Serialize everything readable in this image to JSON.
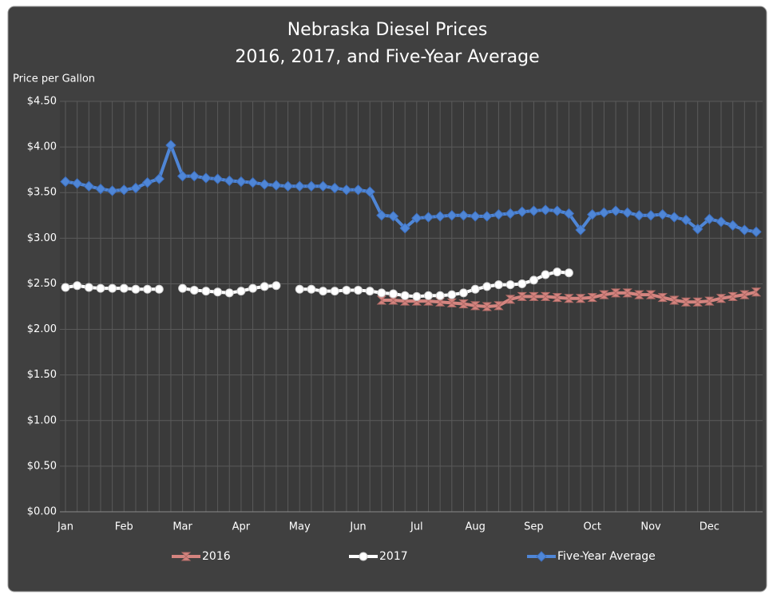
{
  "chart_data": {
    "type": "line",
    "title": "Nebraska Diesel Prices",
    "subtitle": "2016, 2017, and Five-Year Average",
    "y_label": "Price per Gallon",
    "categories": [
      "Jan",
      null,
      null,
      null,
      null,
      "Feb",
      null,
      null,
      null,
      null,
      "Mar",
      null,
      null,
      null,
      null,
      "Apr",
      null,
      null,
      null,
      null,
      "May",
      null,
      null,
      null,
      null,
      "Jun",
      null,
      null,
      null,
      null,
      "Jul",
      null,
      null,
      null,
      null,
      "Aug",
      null,
      null,
      null,
      null,
      "Sep",
      null,
      null,
      null,
      null,
      "Oct",
      null,
      null,
      null,
      null,
      "Nov",
      null,
      null,
      null,
      null,
      "Dec",
      null,
      null,
      null,
      null
    ],
    "series": [
      {
        "name": "2016",
        "color": "#d4847f",
        "marker": "bowtie",
        "values": [
          null,
          null,
          null,
          null,
          null,
          null,
          null,
          null,
          null,
          null,
          null,
          null,
          null,
          null,
          null,
          null,
          null,
          null,
          null,
          null,
          null,
          null,
          null,
          null,
          null,
          null,
          null,
          2.32,
          2.32,
          2.31,
          2.31,
          2.31,
          2.3,
          2.29,
          2.28,
          2.26,
          2.25,
          2.26,
          2.33,
          2.36,
          2.36,
          2.36,
          2.35,
          2.34,
          2.34,
          2.35,
          2.38,
          2.4,
          2.4,
          2.38,
          2.38,
          2.35,
          2.32,
          2.3,
          2.3,
          2.31,
          2.34,
          2.36,
          2.38,
          2.41
        ]
      },
      {
        "name": "2017",
        "color": "#ffffff",
        "marker": "circle",
        "values": [
          2.46,
          2.48,
          2.46,
          2.45,
          2.45,
          2.45,
          2.44,
          2.44,
          2.44,
          null,
          2.45,
          2.43,
          2.42,
          2.41,
          2.4,
          2.42,
          2.45,
          2.47,
          2.48,
          null,
          2.44,
          2.44,
          2.42,
          2.42,
          2.43,
          2.43,
          2.42,
          2.4,
          2.39,
          2.37,
          2.36,
          2.37,
          2.37,
          2.38,
          2.4,
          2.44,
          2.47,
          2.49,
          2.49,
          2.5,
          2.54,
          2.6,
          2.63,
          2.62,
          null,
          null,
          null,
          null,
          null,
          null,
          null,
          null,
          null,
          null,
          null,
          null,
          null,
          null,
          null,
          null
        ]
      },
      {
        "name": "Five-Year Average",
        "color": "#4f86d6",
        "marker": "diamond",
        "values": [
          3.62,
          3.6,
          3.57,
          3.54,
          3.52,
          3.53,
          3.55,
          3.61,
          3.65,
          4.02,
          3.68,
          3.68,
          3.66,
          3.65,
          3.63,
          3.62,
          3.61,
          3.59,
          3.58,
          3.57,
          3.57,
          3.57,
          3.57,
          3.55,
          3.53,
          3.53,
          3.51,
          3.25,
          3.24,
          3.11,
          3.22,
          3.23,
          3.24,
          3.25,
          3.25,
          3.24,
          3.24,
          3.26,
          3.27,
          3.29,
          3.3,
          3.31,
          3.3,
          3.27,
          3.09,
          3.26,
          3.28,
          3.3,
          3.28,
          3.25,
          3.25,
          3.26,
          3.23,
          3.2,
          3.1,
          3.21,
          3.18,
          3.14,
          3.09,
          3.07
        ]
      }
    ],
    "ylim": [
      0,
      4.5
    ],
    "yticks": [
      {
        "value": 0,
        "label": "$0.00"
      },
      {
        "value": 0.5,
        "label": "$0.50"
      },
      {
        "value": 1,
        "label": "$1.00"
      },
      {
        "value": 1.5,
        "label": "$1.50"
      },
      {
        "value": 2,
        "label": "$2.00"
      },
      {
        "value": 2.5,
        "label": "$2.50"
      },
      {
        "value": 3,
        "label": "$3.00"
      },
      {
        "value": 3.5,
        "label": "$3.50"
      },
      {
        "value": 4,
        "label": "$4.00"
      },
      {
        "value": 4.5,
        "label": "$4.50"
      }
    ],
    "grid": true,
    "legend": "bottom"
  }
}
